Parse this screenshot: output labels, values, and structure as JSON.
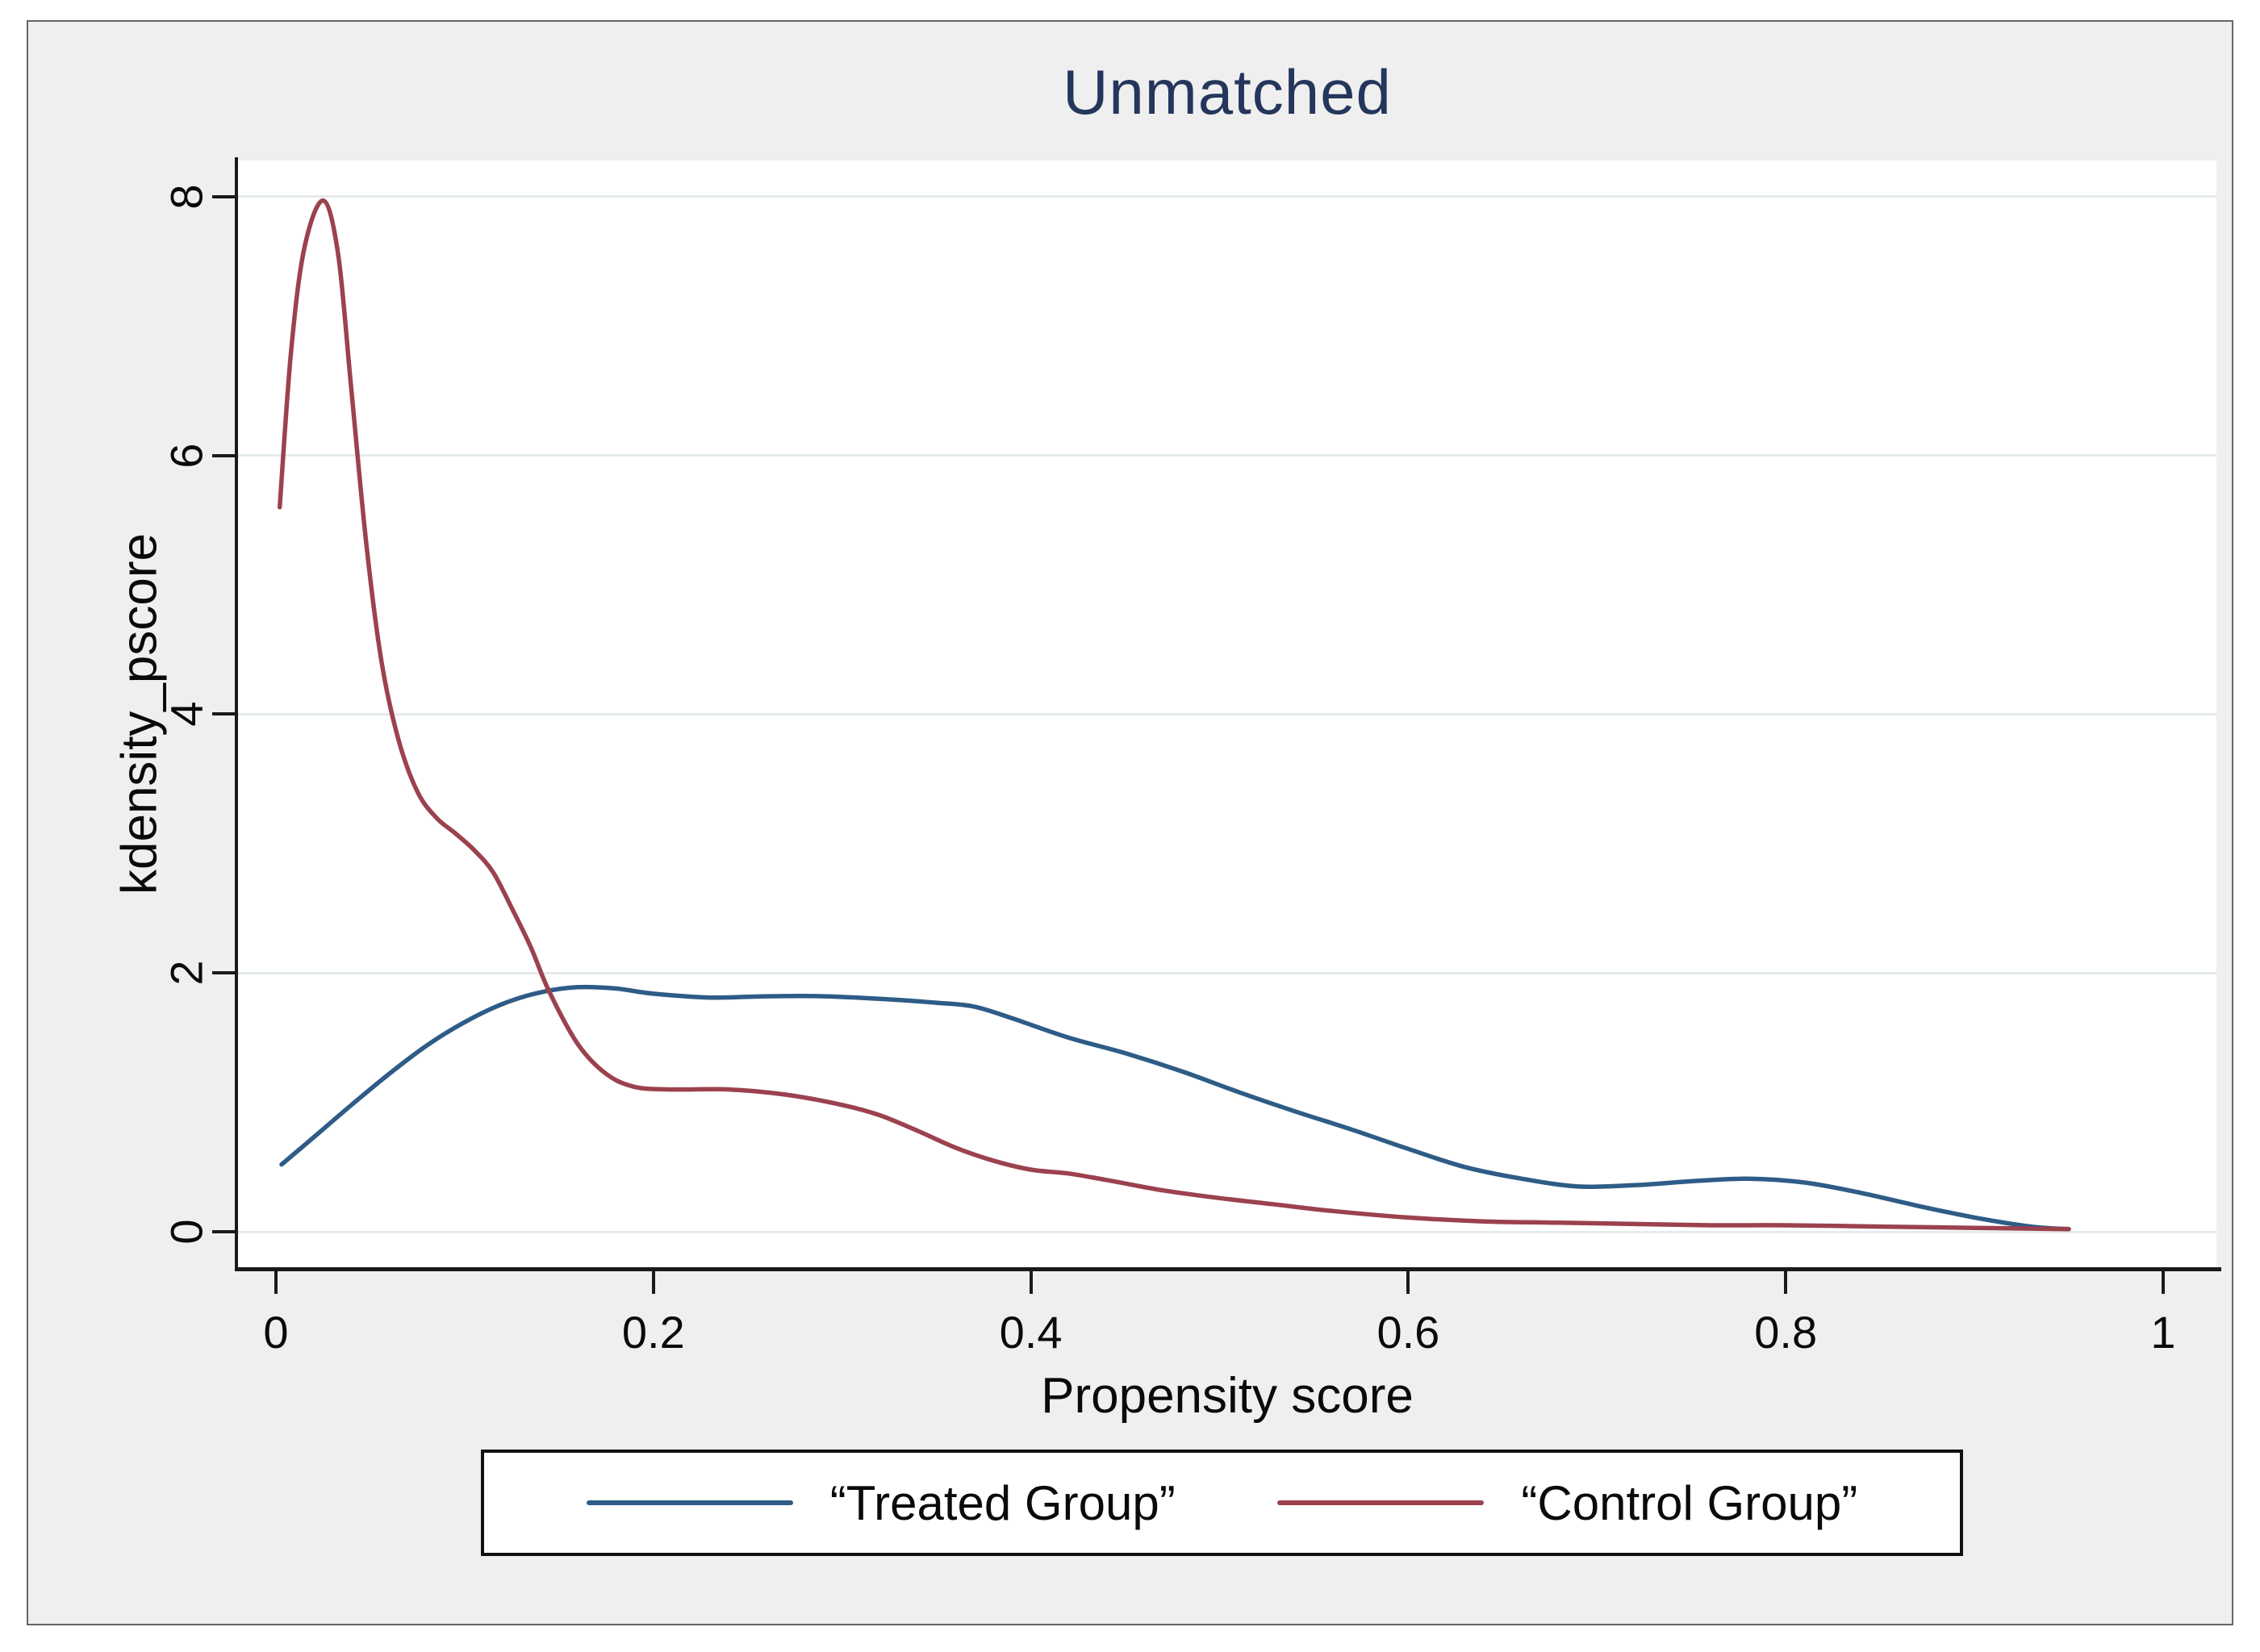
{
  "figure": {
    "canvas_background": "#efefef",
    "plot_background": "#ffffff",
    "title_color": "#24365c",
    "grid_color": "#e4ebec",
    "axis_color": "#1a1a1a"
  },
  "chart_data": {
    "type": "line",
    "title": "Unmatched",
    "xlabel": "Propensity score",
    "ylabel": "kdensity_pscore",
    "xlim": [
      0,
      1
    ],
    "ylim": [
      0,
      8
    ],
    "grid": true,
    "legend_position": "bottom-outside-box",
    "x_ticks": {
      "values": [
        0,
        0.2,
        0.4,
        0.6,
        0.8,
        1
      ],
      "labels": [
        "0",
        "0.2",
        "0.4",
        "0.6",
        "0.8",
        "1"
      ]
    },
    "y_ticks": {
      "values": [
        0,
        2,
        4,
        6,
        8
      ],
      "labels": [
        "0",
        "2",
        "4",
        "6",
        "8"
      ]
    },
    "series": [
      {
        "name": "“Treated Group”",
        "color": "#2e5c86",
        "points": [
          [
            0.003,
            0.52
          ],
          [
            0.02,
            0.73
          ],
          [
            0.04,
            0.98
          ],
          [
            0.06,
            1.22
          ],
          [
            0.08,
            1.44
          ],
          [
            0.1,
            1.62
          ],
          [
            0.12,
            1.76
          ],
          [
            0.14,
            1.85
          ],
          [
            0.16,
            1.89
          ],
          [
            0.18,
            1.88
          ],
          [
            0.2,
            1.84
          ],
          [
            0.23,
            1.81
          ],
          [
            0.26,
            1.82
          ],
          [
            0.29,
            1.82
          ],
          [
            0.32,
            1.8
          ],
          [
            0.35,
            1.77
          ],
          [
            0.37,
            1.74
          ],
          [
            0.39,
            1.65
          ],
          [
            0.42,
            1.5
          ],
          [
            0.45,
            1.38
          ],
          [
            0.48,
            1.24
          ],
          [
            0.51,
            1.08
          ],
          [
            0.54,
            0.93
          ],
          [
            0.57,
            0.79
          ],
          [
            0.6,
            0.64
          ],
          [
            0.63,
            0.5
          ],
          [
            0.66,
            0.41
          ],
          [
            0.69,
            0.35
          ],
          [
            0.72,
            0.36
          ],
          [
            0.75,
            0.39
          ],
          [
            0.78,
            0.41
          ],
          [
            0.81,
            0.38
          ],
          [
            0.84,
            0.3
          ],
          [
            0.87,
            0.2
          ],
          [
            0.9,
            0.11
          ],
          [
            0.93,
            0.04
          ],
          [
            0.95,
            0.02
          ]
        ]
      },
      {
        "name": "“Control Group”",
        "color": "#9b424e",
        "points": [
          [
            0.002,
            5.6
          ],
          [
            0.008,
            6.8
          ],
          [
            0.015,
            7.6
          ],
          [
            0.025,
            7.97
          ],
          [
            0.033,
            7.55
          ],
          [
            0.04,
            6.5
          ],
          [
            0.048,
            5.3
          ],
          [
            0.056,
            4.4
          ],
          [
            0.065,
            3.8
          ],
          [
            0.075,
            3.4
          ],
          [
            0.085,
            3.2
          ],
          [
            0.095,
            3.08
          ],
          [
            0.105,
            2.95
          ],
          [
            0.115,
            2.78
          ],
          [
            0.125,
            2.5
          ],
          [
            0.135,
            2.2
          ],
          [
            0.145,
            1.85
          ],
          [
            0.16,
            1.45
          ],
          [
            0.175,
            1.22
          ],
          [
            0.19,
            1.12
          ],
          [
            0.21,
            1.1
          ],
          [
            0.24,
            1.1
          ],
          [
            0.27,
            1.06
          ],
          [
            0.3,
            0.98
          ],
          [
            0.32,
            0.9
          ],
          [
            0.34,
            0.78
          ],
          [
            0.36,
            0.65
          ],
          [
            0.38,
            0.55
          ],
          [
            0.4,
            0.48
          ],
          [
            0.42,
            0.45
          ],
          [
            0.44,
            0.4
          ],
          [
            0.47,
            0.32
          ],
          [
            0.5,
            0.26
          ],
          [
            0.53,
            0.21
          ],
          [
            0.56,
            0.16
          ],
          [
            0.6,
            0.11
          ],
          [
            0.64,
            0.08
          ],
          [
            0.68,
            0.07
          ],
          [
            0.72,
            0.06
          ],
          [
            0.76,
            0.05
          ],
          [
            0.8,
            0.05
          ],
          [
            0.85,
            0.04
          ],
          [
            0.9,
            0.03
          ],
          [
            0.95,
            0.02
          ]
        ]
      }
    ]
  }
}
